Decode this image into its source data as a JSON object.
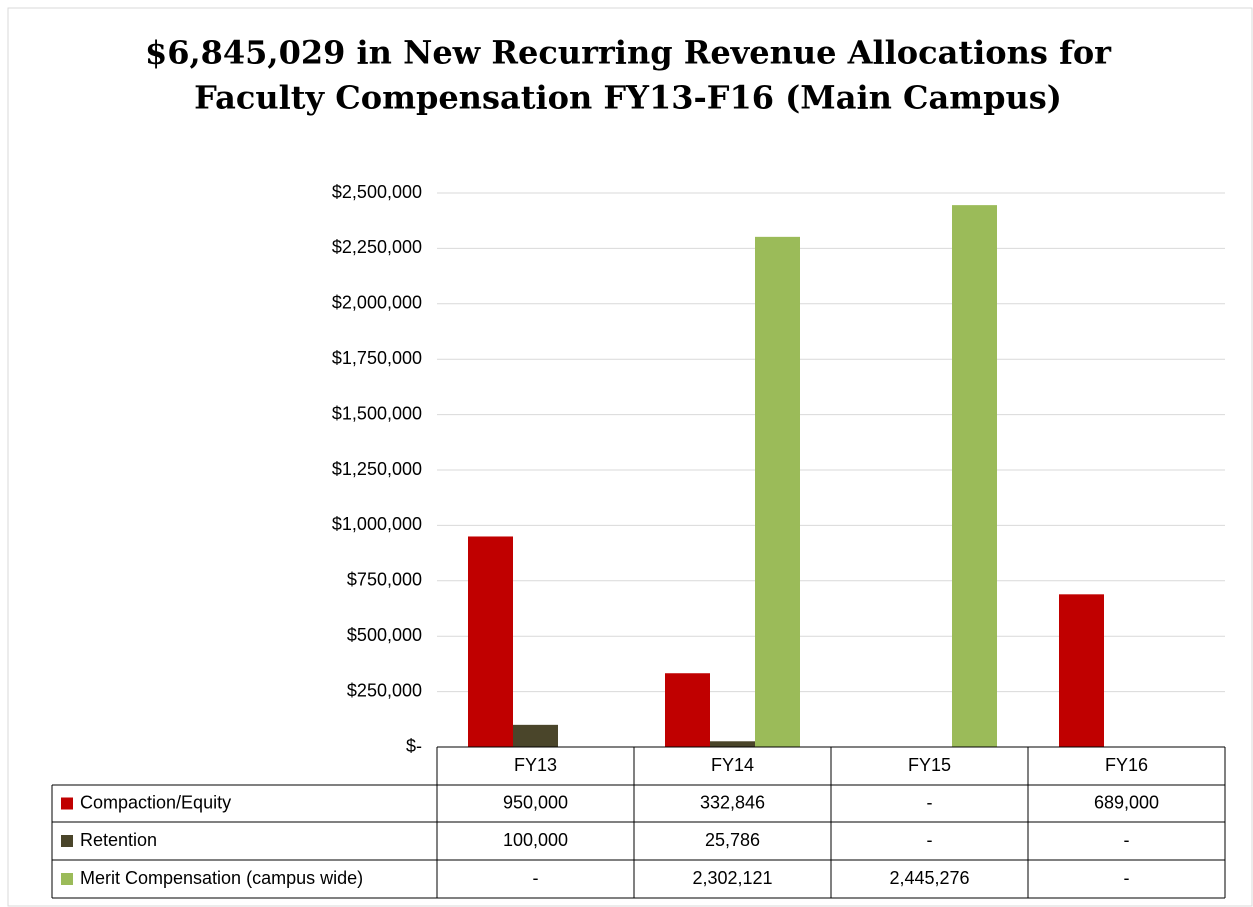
{
  "chart_data": {
    "type": "bar",
    "title": [
      "$6,845,029 in New Recurring Revenue Allocations for",
      "Faculty Compensation FY13-F16 (Main Campus)"
    ],
    "categories": [
      "FY13",
      "FY14",
      "FY15",
      "FY16"
    ],
    "series": [
      {
        "name": "Compaction/Equity",
        "color": "#c00000",
        "values": [
          950000,
          332846,
          0,
          689000
        ],
        "value_labels": [
          "950,000",
          "332,846",
          "-",
          "689,000"
        ]
      },
      {
        "name": "Retention",
        "color": "#4a452a",
        "values": [
          100000,
          25786,
          0,
          0
        ],
        "value_labels": [
          "100,000",
          "25,786",
          "-",
          "-"
        ]
      },
      {
        "name": "Merit Compensation (campus wide)",
        "color": "#9bbb59",
        "values": [
          0,
          2302121,
          2445276,
          0
        ],
        "value_labels": [
          "-",
          "2,302,121",
          "2,445,276",
          "-"
        ]
      }
    ],
    "ylim": [
      0,
      2500000
    ],
    "yticks": [
      {
        "value": 0,
        "label": "$-"
      },
      {
        "value": 250000,
        "label": "$250,000"
      },
      {
        "value": 500000,
        "label": "$500,000"
      },
      {
        "value": 750000,
        "label": "$750,000"
      },
      {
        "value": 1000000,
        "label": "$1,000,000"
      },
      {
        "value": 1250000,
        "label": "$1,250,000"
      },
      {
        "value": 1500000,
        "label": "$1,500,000"
      },
      {
        "value": 1750000,
        "label": "$1,750,000"
      },
      {
        "value": 2000000,
        "label": "$2,000,000"
      },
      {
        "value": 2250000,
        "label": "$2,250,000"
      },
      {
        "value": 2500000,
        "label": "$2,500,000"
      }
    ],
    "grid": true
  }
}
